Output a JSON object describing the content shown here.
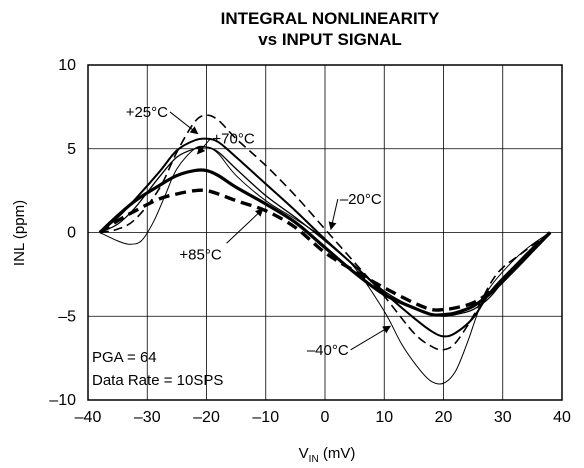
{
  "chart_data": {
    "type": "line",
    "title_line1": "INTEGRAL NONLINEARITY",
    "title_line2": "vs INPUT SIGNAL",
    "xlabel_main": "V",
    "xlabel_sub": "IN",
    "xlabel_unit": " (mV)",
    "ylabel": "INL (ppm)",
    "xlim": [
      -40,
      40
    ],
    "ylim": [
      -10,
      10
    ],
    "x_ticks": [
      -40,
      -30,
      -20,
      -10,
      0,
      10,
      20,
      30,
      40
    ],
    "x_tick_labels": [
      "–40",
      "–30",
      "–20",
      "–10",
      "0",
      "10",
      "20",
      "30",
      "40"
    ],
    "y_ticks": [
      -10,
      -5,
      0,
      5,
      10
    ],
    "y_tick_labels": [
      "–10",
      "–5",
      "0",
      "5",
      "10"
    ],
    "grid": true,
    "conditions": [
      "PGA = 64",
      "Data Rate = 10SPS"
    ],
    "series": [
      {
        "name": "+25°C",
        "style": "solid-medium",
        "x": [
          -38,
          -35,
          -32,
          -28,
          -25,
          -22,
          -20,
          -18,
          -15,
          -10,
          -5,
          0,
          5,
          10,
          15,
          18,
          20,
          22,
          25,
          28,
          32,
          35,
          38
        ],
        "y": [
          0,
          0.9,
          2.0,
          3.6,
          4.9,
          5.5,
          5.6,
          5.4,
          4.5,
          2.9,
          1.3,
          -0.4,
          -2.0,
          -3.6,
          -5.1,
          -5.9,
          -6.2,
          -6.0,
          -5.1,
          -3.5,
          -2.0,
          -1.0,
          0
        ]
      },
      {
        "name": "+70°C",
        "style": "solid-thin",
        "x": [
          -38,
          -35,
          -32,
          -28,
          -25,
          -22,
          -20,
          -18,
          -15,
          -10,
          -5,
          0,
          5,
          10,
          15,
          18,
          20,
          22,
          25,
          28,
          32,
          35,
          38
        ],
        "y": [
          0,
          0.5,
          1.5,
          3.3,
          4.5,
          5.0,
          5.1,
          4.8,
          3.8,
          2.2,
          0.9,
          -0.5,
          -2.0,
          -3.5,
          -4.5,
          -4.9,
          -5.0,
          -4.9,
          -4.6,
          -3.8,
          -2.0,
          -0.9,
          0
        ]
      },
      {
        "name": "–20°C",
        "style": "dashed-thin",
        "x": [
          -38,
          -35,
          -32,
          -28,
          -25,
          -22,
          -20,
          -18,
          -15,
          -10,
          -5,
          0,
          5,
          10,
          15,
          18,
          20,
          22,
          25,
          28,
          30,
          33,
          36,
          38
        ],
        "y": [
          0,
          0.2,
          0.8,
          2.6,
          4.8,
          6.6,
          7.0,
          6.7,
          5.6,
          4.0,
          2.2,
          0.2,
          -1.8,
          -3.8,
          -6.0,
          -6.8,
          -7.0,
          -6.6,
          -5.0,
          -3.0,
          -2.1,
          -1.3,
          -0.5,
          0
        ]
      },
      {
        "name": "–40°C",
        "style": "solid-hairline",
        "x": [
          -38,
          -35,
          -33,
          -31,
          -29,
          -27,
          -25,
          -22,
          -20,
          -18,
          -15,
          -10,
          -5,
          0,
          5,
          10,
          13,
          16,
          18,
          20,
          22,
          24,
          26,
          28,
          32,
          35,
          38
        ],
        "y": [
          0,
          -0.5,
          -0.7,
          -0.5,
          0.6,
          2.2,
          3.8,
          5.0,
          5.1,
          4.7,
          3.4,
          1.9,
          0.8,
          -0.4,
          -2.1,
          -4.7,
          -6.7,
          -8.2,
          -8.9,
          -9.0,
          -8.3,
          -6.6,
          -4.6,
          -3.2,
          -1.6,
          -0.7,
          0
        ]
      },
      {
        "name": "+85°C",
        "style": "dashed-thick",
        "x": [
          -38,
          -35,
          -32,
          -28,
          -25,
          -22,
          -20,
          -18,
          -15,
          -10,
          -5,
          0,
          5,
          10,
          15,
          18,
          20,
          22,
          25,
          28,
          32,
          35,
          38
        ],
        "y": [
          0,
          0.7,
          1.3,
          2.0,
          2.3,
          2.5,
          2.5,
          2.3,
          1.9,
          1.3,
          0.3,
          -1.2,
          -2.3,
          -3.3,
          -4.2,
          -4.6,
          -4.6,
          -4.5,
          -4.2,
          -3.5,
          -2.1,
          -1.0,
          0
        ]
      },
      {
        "name": "+85°C-solid",
        "style": "solid-thick",
        "x": [
          -38,
          -35,
          -32,
          -28,
          -25,
          -22,
          -20,
          -18,
          -15,
          -10,
          -5,
          0,
          5,
          10,
          15,
          18,
          20,
          22,
          25,
          28,
          32,
          35,
          38
        ],
        "y": [
          0,
          1.0,
          1.9,
          2.8,
          3.4,
          3.7,
          3.7,
          3.4,
          2.7,
          1.7,
          0.6,
          -0.9,
          -2.4,
          -3.7,
          -4.5,
          -4.9,
          -4.9,
          -4.8,
          -4.4,
          -3.6,
          -2.2,
          -1.1,
          0
        ]
      }
    ],
    "annotations": [
      {
        "text": "+25°C",
        "series": "+25°C",
        "x_text": -26.5,
        "y_text": 6.9,
        "anchor": "end",
        "x_arrow": -21.5,
        "y_arrow": 5.9
      },
      {
        "text": "+70°C",
        "series": "+70°C",
        "x_text": -19,
        "y_text": 5.3,
        "anchor": "start",
        "x_arrow": -21.5,
        "y_arrow": 4.7
      },
      {
        "text": "–20°C",
        "series": "–20°C",
        "x_text": 2.5,
        "y_text": 1.7,
        "anchor": "start",
        "x_arrow": 1,
        "y_arrow": 0.2
      },
      {
        "text": "+85°C",
        "series": "+85°C",
        "x_text": -21,
        "y_text": -1.6,
        "anchor": "middle",
        "x_arrow": -10.5,
        "y_arrow": 1.4
      },
      {
        "text": "–40°C",
        "series": "–40°C",
        "x_text": 4,
        "y_text": -7.3,
        "anchor": "end",
        "x_arrow": 11,
        "y_arrow": -5.6
      }
    ]
  }
}
